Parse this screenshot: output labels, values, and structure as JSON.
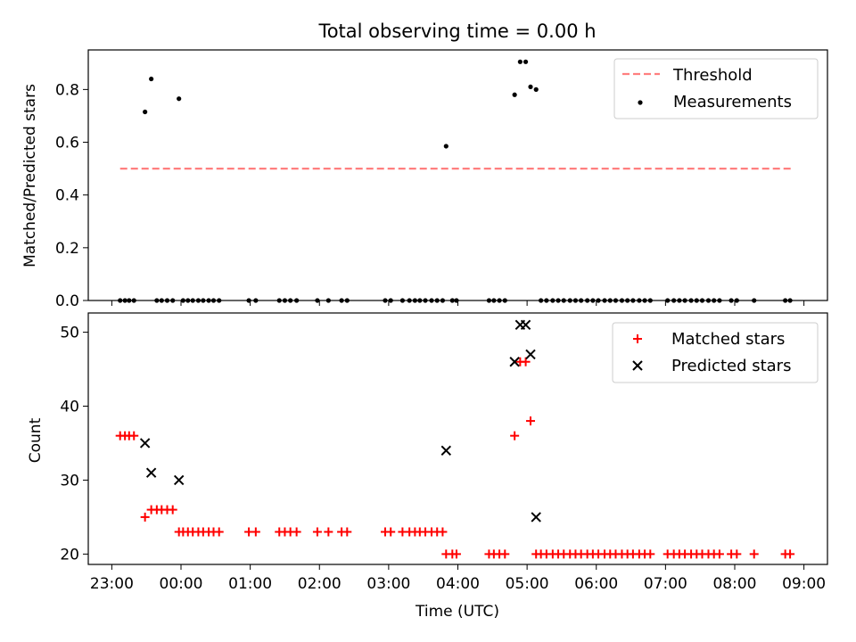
{
  "chart_data": [
    {
      "type": "scatter",
      "title": "Total observing time = 0.00 h",
      "ylabel": "Matched/Predicted stars",
      "xlabel": "",
      "x_unit": "hours since 23:00 UTC",
      "xlim": [
        -0.34,
        10.34
      ],
      "ylim": [
        0,
        0.95
      ],
      "yticks": [
        0.0,
        0.2,
        0.4,
        0.6,
        0.8
      ],
      "ytick_labels": [
        "0.0",
        "0.2",
        "0.4",
        "0.6",
        "0.8"
      ],
      "legend_position": "top-right",
      "threshold": {
        "name": "Threshold",
        "value": 0.5,
        "x_range": [
          0.12,
          9.82
        ],
        "color": "#ff7f7f"
      },
      "series": [
        {
          "name": "Measurements",
          "color": "#000000",
          "points": [
            [
              0.12,
              0
            ],
            [
              0.19,
              0
            ],
            [
              0.25,
              0
            ],
            [
              0.32,
              0
            ],
            [
              0.48,
              0.715
            ],
            [
              0.57,
              0.84
            ],
            [
              0.65,
              0
            ],
            [
              0.72,
              0
            ],
            [
              0.8,
              0
            ],
            [
              0.88,
              0
            ],
            [
              0.97,
              0.765
            ],
            [
              1.03,
              0
            ],
            [
              1.1,
              0
            ],
            [
              1.17,
              0
            ],
            [
              1.25,
              0
            ],
            [
              1.32,
              0
            ],
            [
              1.4,
              0
            ],
            [
              1.47,
              0
            ],
            [
              1.55,
              0
            ],
            [
              1.98,
              0
            ],
            [
              2.08,
              0
            ],
            [
              2.42,
              0
            ],
            [
              2.5,
              0
            ],
            [
              2.58,
              0
            ],
            [
              2.67,
              0
            ],
            [
              2.97,
              0
            ],
            [
              3.13,
              0
            ],
            [
              3.32,
              0
            ],
            [
              3.4,
              0
            ],
            [
              3.95,
              0
            ],
            [
              4.03,
              0
            ],
            [
              4.2,
              0
            ],
            [
              4.3,
              0
            ],
            [
              4.38,
              0
            ],
            [
              4.45,
              0
            ],
            [
              4.53,
              0
            ],
            [
              4.62,
              0
            ],
            [
              4.7,
              0
            ],
            [
              4.78,
              0
            ],
            [
              4.83,
              0.585
            ],
            [
              4.92,
              0
            ],
            [
              4.98,
              0
            ],
            [
              5.45,
              0
            ],
            [
              5.52,
              0
            ],
            [
              5.6,
              0
            ],
            [
              5.68,
              0
            ],
            [
              5.82,
              0.78
            ],
            [
              5.9,
              0.905
            ],
            [
              5.98,
              0.905
            ],
            [
              6.05,
              0.81
            ],
            [
              6.13,
              0.8
            ],
            [
              6.2,
              0
            ],
            [
              6.28,
              0
            ],
            [
              6.37,
              0
            ],
            [
              6.45,
              0
            ],
            [
              6.53,
              0
            ],
            [
              6.62,
              0
            ],
            [
              6.7,
              0
            ],
            [
              6.78,
              0
            ],
            [
              6.87,
              0
            ],
            [
              6.95,
              0
            ],
            [
              7.03,
              0
            ],
            [
              7.12,
              0
            ],
            [
              7.2,
              0
            ],
            [
              7.28,
              0
            ],
            [
              7.37,
              0
            ],
            [
              7.45,
              0
            ],
            [
              7.53,
              0
            ],
            [
              7.62,
              0
            ],
            [
              7.7,
              0
            ],
            [
              7.78,
              0
            ],
            [
              8.03,
              0
            ],
            [
              8.12,
              0
            ],
            [
              8.2,
              0
            ],
            [
              8.28,
              0
            ],
            [
              8.37,
              0
            ],
            [
              8.45,
              0
            ],
            [
              8.53,
              0
            ],
            [
              8.62,
              0
            ],
            [
              8.7,
              0
            ],
            [
              8.78,
              0
            ],
            [
              8.95,
              0
            ],
            [
              9.03,
              0
            ],
            [
              9.28,
              0
            ],
            [
              9.73,
              0
            ],
            [
              9.8,
              0
            ]
          ]
        }
      ]
    },
    {
      "type": "scatter",
      "title": "",
      "xlabel": "Time (UTC)",
      "ylabel": "Count",
      "x_unit": "hours since 23:00 UTC",
      "xlim": [
        -0.34,
        10.34
      ],
      "ylim": [
        18.6,
        52.6
      ],
      "xticks": [
        0,
        1,
        2,
        3,
        4,
        5,
        6,
        7,
        8,
        9,
        10
      ],
      "xtick_labels": [
        "23:00",
        "00:00",
        "01:00",
        "02:00",
        "03:00",
        "04:00",
        "05:00",
        "06:00",
        "07:00",
        "08:00",
        "09:00"
      ],
      "yticks": [
        20,
        30,
        40,
        50
      ],
      "ytick_labels": [
        "20",
        "30",
        "40",
        "50"
      ],
      "legend_position": "top-right",
      "series": [
        {
          "name": "Matched stars",
          "marker": "plus",
          "color": "#ff0000",
          "points": [
            [
              0.12,
              36
            ],
            [
              0.19,
              36
            ],
            [
              0.25,
              36
            ],
            [
              0.32,
              36
            ],
            [
              0.48,
              25
            ],
            [
              0.57,
              26
            ],
            [
              0.65,
              26
            ],
            [
              0.72,
              26
            ],
            [
              0.8,
              26
            ],
            [
              0.88,
              26
            ],
            [
              0.97,
              23
            ],
            [
              1.03,
              23
            ],
            [
              1.1,
              23
            ],
            [
              1.17,
              23
            ],
            [
              1.25,
              23
            ],
            [
              1.32,
              23
            ],
            [
              1.4,
              23
            ],
            [
              1.47,
              23
            ],
            [
              1.55,
              23
            ],
            [
              1.98,
              23
            ],
            [
              2.08,
              23
            ],
            [
              2.42,
              23
            ],
            [
              2.5,
              23
            ],
            [
              2.58,
              23
            ],
            [
              2.67,
              23
            ],
            [
              2.97,
              23
            ],
            [
              3.13,
              23
            ],
            [
              3.32,
              23
            ],
            [
              3.4,
              23
            ],
            [
              3.95,
              23
            ],
            [
              4.03,
              23
            ],
            [
              4.2,
              23
            ],
            [
              4.3,
              23
            ],
            [
              4.38,
              23
            ],
            [
              4.45,
              23
            ],
            [
              4.53,
              23
            ],
            [
              4.62,
              23
            ],
            [
              4.7,
              23
            ],
            [
              4.78,
              23
            ],
            [
              4.83,
              20
            ],
            [
              4.92,
              20
            ],
            [
              4.98,
              20
            ],
            [
              5.45,
              20
            ],
            [
              5.52,
              20
            ],
            [
              5.6,
              20
            ],
            [
              5.68,
              20
            ],
            [
              5.82,
              36
            ],
            [
              5.9,
              46
            ],
            [
              5.98,
              46
            ],
            [
              6.05,
              38
            ],
            [
              6.13,
              20
            ],
            [
              6.2,
              20
            ],
            [
              6.28,
              20
            ],
            [
              6.37,
              20
            ],
            [
              6.45,
              20
            ],
            [
              6.53,
              20
            ],
            [
              6.62,
              20
            ],
            [
              6.7,
              20
            ],
            [
              6.78,
              20
            ],
            [
              6.87,
              20
            ],
            [
              6.95,
              20
            ],
            [
              7.03,
              20
            ],
            [
              7.12,
              20
            ],
            [
              7.2,
              20
            ],
            [
              7.28,
              20
            ],
            [
              7.37,
              20
            ],
            [
              7.45,
              20
            ],
            [
              7.53,
              20
            ],
            [
              7.62,
              20
            ],
            [
              7.7,
              20
            ],
            [
              7.78,
              20
            ],
            [
              8.03,
              20
            ],
            [
              8.12,
              20
            ],
            [
              8.2,
              20
            ],
            [
              8.28,
              20
            ],
            [
              8.37,
              20
            ],
            [
              8.45,
              20
            ],
            [
              8.53,
              20
            ],
            [
              8.62,
              20
            ],
            [
              8.7,
              20
            ],
            [
              8.78,
              20
            ],
            [
              8.95,
              20
            ],
            [
              9.03,
              20
            ],
            [
              9.28,
              20
            ],
            [
              9.73,
              20
            ],
            [
              9.8,
              20
            ]
          ]
        },
        {
          "name": "Predicted stars",
          "marker": "x",
          "color": "#000000",
          "points": [
            [
              0.48,
              35
            ],
            [
              0.57,
              31
            ],
            [
              0.97,
              30
            ],
            [
              4.83,
              34
            ],
            [
              5.82,
              46
            ],
            [
              5.9,
              51
            ],
            [
              5.98,
              51
            ],
            [
              6.05,
              47
            ],
            [
              6.13,
              25
            ]
          ]
        }
      ]
    }
  ]
}
